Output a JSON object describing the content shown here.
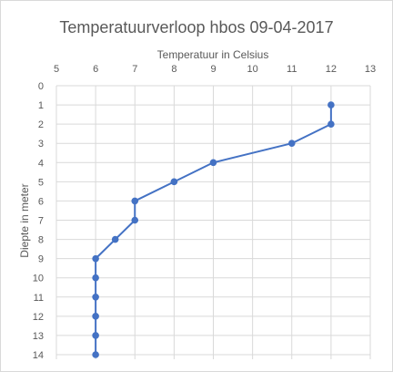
{
  "chart_data": {
    "type": "scatter",
    "title": "Temperatuurverloop hbos 09-04-2017",
    "xlabel": "Temperatuur in Celsius",
    "ylabel": "Diepte in meter",
    "x_axis_position": "top",
    "y_axis_reversed": true,
    "xlim": [
      5,
      13
    ],
    "ylim": [
      0,
      14
    ],
    "x_ticks": [
      "5",
      "6",
      "7",
      "8",
      "9",
      "10",
      "11",
      "12",
      "13"
    ],
    "y_ticks": [
      "0",
      "1",
      "2",
      "3",
      "4",
      "5",
      "6",
      "7",
      "8",
      "9",
      "10",
      "11",
      "12",
      "13",
      "14"
    ],
    "grid": true,
    "series": [
      {
        "color": "#4472c4",
        "points": [
          {
            "x": 12,
            "y": 1
          },
          {
            "x": 12,
            "y": 2
          },
          {
            "x": 11,
            "y": 3
          },
          {
            "x": 9,
            "y": 4
          },
          {
            "x": 8,
            "y": 5
          },
          {
            "x": 7,
            "y": 6
          },
          {
            "x": 7,
            "y": 7
          },
          {
            "x": 6.5,
            "y": 8
          },
          {
            "x": 6,
            "y": 9
          },
          {
            "x": 6,
            "y": 10
          },
          {
            "x": 6,
            "y": 11
          },
          {
            "x": 6,
            "y": 12
          },
          {
            "x": 6,
            "y": 13
          },
          {
            "x": 6,
            "y": 14
          }
        ]
      }
    ]
  }
}
